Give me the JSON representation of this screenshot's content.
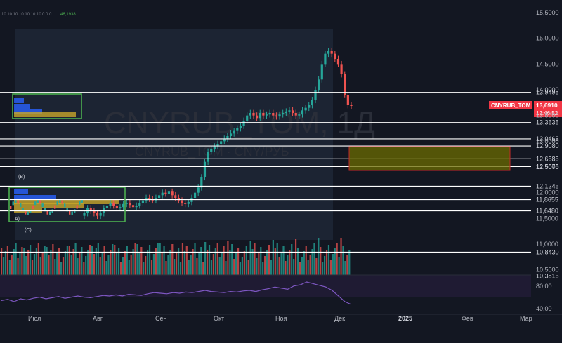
{
  "header": {
    "indicator_values": "10 10 10 10 10 10 10",
    "indicator_extra": "0 0 0",
    "indicator_value_green": "46,1938"
  },
  "watermark": {
    "symbol": "CNYRUB_TOM, 1Д",
    "description": "CNYRUB_TOM · CNY/РУБ"
  },
  "ticker_badge": {
    "symbol": "CNYRUB_TOM",
    "price": "13,6910",
    "countdown": "12:46:52"
  },
  "colors": {
    "up": "#26a69a",
    "down": "#ef5350",
    "badge": "#f23645",
    "rsi": "#7e57c2",
    "zone_fill": "#6b6b00",
    "box_green": "#4caf50"
  },
  "price_levels": [
    "13,9495",
    "13,3635",
    "13,0465",
    "12,9080",
    "12,6585",
    "12,5075",
    "12,1245",
    "11,8655",
    "11,6480",
    "10,8430",
    "10,3815"
  ],
  "chart_data": {
    "type": "candlestick",
    "title": "CNYRUB_TOM, 1Д",
    "axis_ticks": [
      "15,5000",
      "15,0000",
      "14,5000",
      "14,0000",
      "13,5000",
      "13,0000",
      "12,5000",
      "12,0000",
      "11,5000",
      "11,0000",
      "10,5000"
    ],
    "ylim": [
      10.33,
      15.65
    ],
    "x_months": [
      "Июл",
      "Авг",
      "Сен",
      "Окт",
      "Ноя",
      "Дек",
      "2025",
      "Фев",
      "Мар"
    ],
    "horizontal_levels": [
      13.9495,
      13.3635,
      13.0465,
      12.908,
      12.6585,
      12.5075,
      12.1245,
      11.8655,
      11.648,
      10.843,
      10.3815
    ],
    "last_price": 13.691,
    "close_series": [
      11.6,
      11.7,
      11.65,
      11.6,
      11.55,
      11.6,
      11.7,
      11.75,
      11.8,
      11.75,
      11.7,
      11.72,
      11.78,
      11.8,
      11.76,
      11.72,
      11.75,
      11.8,
      11.85,
      11.9,
      11.88,
      11.85,
      11.9,
      11.95,
      12.0,
      11.98,
      12.02,
      11.95,
      11.9,
      11.85,
      11.8,
      11.78,
      11.82,
      11.9,
      12.0,
      12.1,
      12.3,
      12.6,
      12.8,
      12.85,
      12.9,
      12.95,
      13.0,
      13.05,
      13.1,
      13.15,
      13.2,
      13.25,
      13.3,
      13.4,
      13.5,
      13.55,
      13.5,
      13.45,
      13.55,
      13.5,
      13.52,
      13.55,
      13.5,
      13.48,
      13.52,
      13.55,
      13.58,
      13.6,
      13.55,
      13.5,
      13.52,
      13.6,
      13.65,
      13.7,
      13.8,
      14.0,
      14.2,
      14.5,
      14.7,
      14.75,
      14.7,
      14.6,
      14.5,
      14.3,
      13.9,
      13.7,
      13.69
    ],
    "rsi_axis": [
      "80,00",
      "40,00"
    ],
    "rsi_series": [
      52,
      54,
      50,
      55,
      53,
      56,
      58,
      55,
      57,
      59,
      56,
      58,
      60,
      58,
      57,
      59,
      61,
      60,
      62,
      60,
      63,
      62,
      61,
      64,
      66,
      65,
      64,
      66,
      65,
      67,
      66,
      68,
      70,
      68,
      67,
      66,
      68,
      67,
      69,
      70,
      68,
      71,
      73,
      76,
      74,
      72,
      78,
      80,
      85,
      82,
      79,
      76,
      70,
      60,
      50,
      45
    ]
  }
}
